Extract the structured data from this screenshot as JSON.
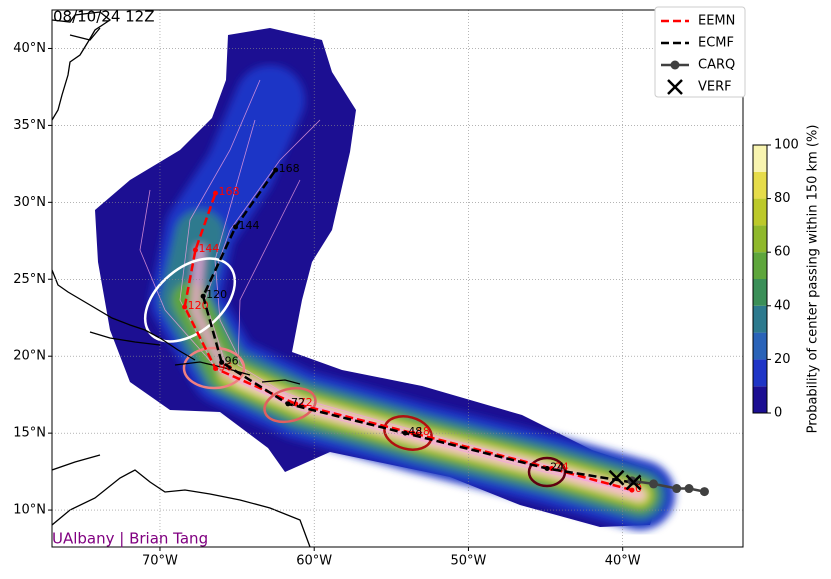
{
  "chart_data": {
    "type": "line",
    "title": "08/10/24 12Z",
    "credit": "UAlbany | Brian Tang",
    "xlim": [
      -77,
      -32.2
    ],
    "ylim": [
      7.6,
      42.5
    ],
    "xticks": [
      {
        "value": -70,
        "label": "70°W"
      },
      {
        "value": -60,
        "label": "60°W"
      },
      {
        "value": -50,
        "label": "50°W"
      },
      {
        "value": -40,
        "label": "40°W"
      }
    ],
    "yticks": [
      {
        "value": 10,
        "label": "10°N"
      },
      {
        "value": 15,
        "label": "15°N"
      },
      {
        "value": 20,
        "label": "20°N"
      },
      {
        "value": 25,
        "label": "25°N"
      },
      {
        "value": 30,
        "label": "30°N"
      },
      {
        "value": 35,
        "label": "35°N"
      },
      {
        "value": 40,
        "label": "40°N"
      }
    ],
    "grid": true,
    "legend": "upper right",
    "series": [
      {
        "name": "EEMN",
        "color": "#ff0000",
        "linestyle": "dashed",
        "marker": "dot",
        "x": [
          -39.4,
          -44.6,
          -53.6,
          -61.2,
          -66.4,
          -68.4,
          -67.7,
          -66.4
        ],
        "values": [
          11.3,
          12.7,
          15.0,
          16.9,
          19.2,
          23.2,
          26.9,
          30.6
        ],
        "hours": [
          0,
          24,
          48,
          72,
          96,
          120,
          144,
          168
        ]
      },
      {
        "name": "ECMF",
        "color": "#000000",
        "linestyle": "dashed",
        "marker": "dot",
        "x": [
          -39.4,
          -44.9,
          -54.1,
          -61.7,
          -66.0,
          -67.2,
          -65.1,
          -62.5
        ],
        "values": [
          11.8,
          12.7,
          15.0,
          16.9,
          19.6,
          23.9,
          28.4,
          32.1
        ],
        "hours": [
          0,
          24,
          48,
          72,
          96,
          120,
          144,
          168
        ]
      },
      {
        "name": "CARQ",
        "color": "#404040",
        "linestyle": "solid",
        "marker": "circle",
        "x": [
          -34.7,
          -35.7,
          -36.5,
          -38.0,
          -39.4
        ],
        "values": [
          11.2,
          11.4,
          11.4,
          11.7,
          11.9
        ]
      },
      {
        "name": "VERF",
        "color": "#000000",
        "linestyle": "none",
        "marker": "x",
        "x": [
          -40.4,
          -39.3
        ],
        "values": [
          12.1,
          11.8
        ]
      }
    ],
    "colorbar": {
      "label": "Probability of center passing within 150 km (%)",
      "levels": [
        0,
        10,
        20,
        30,
        40,
        50,
        60,
        70,
        80,
        90,
        100
      ],
      "colors": [
        "#1c0f92",
        "#1f35c6",
        "#2a63b8",
        "#2d7a8e",
        "#3b8f58",
        "#5ea63c",
        "#8fb82b",
        "#bcc92a",
        "#e6dc4a",
        "#f8f4b0"
      ],
      "ticks": [
        0,
        20,
        40,
        60,
        80,
        100
      ]
    }
  }
}
